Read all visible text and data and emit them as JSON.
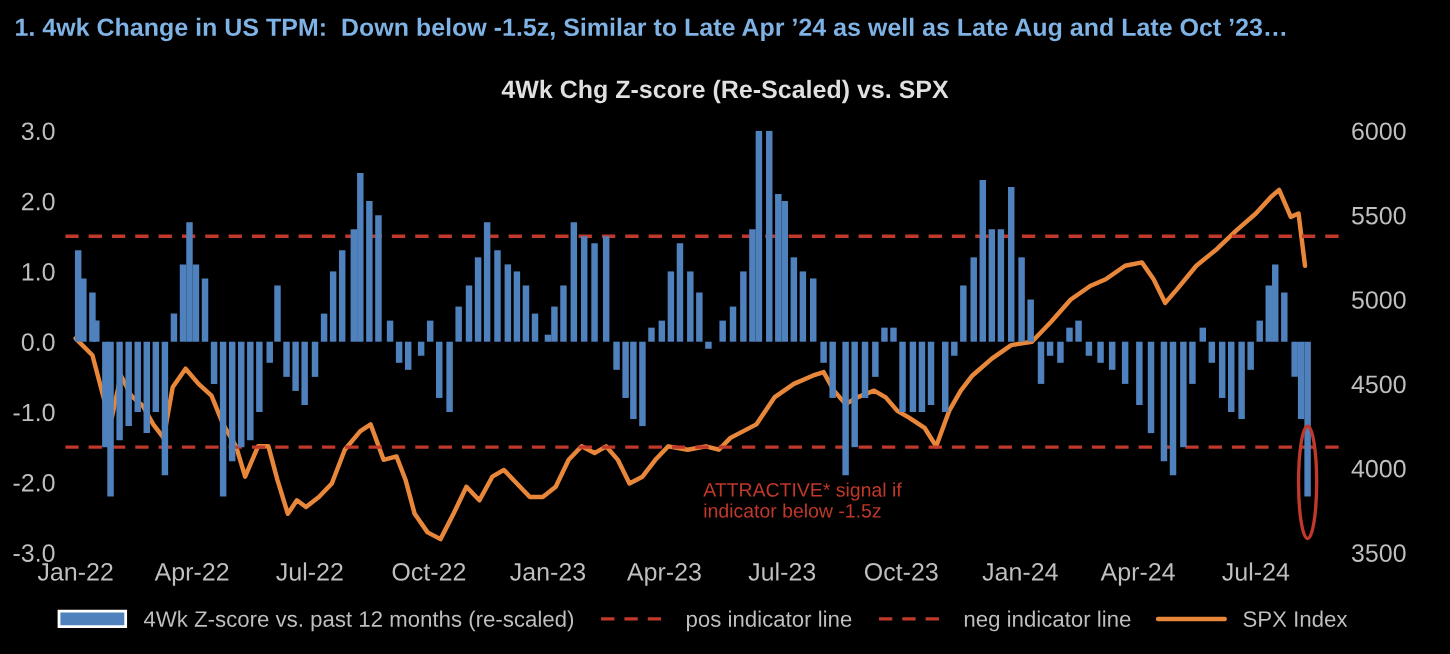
{
  "chart_data": {
    "type": "bar",
    "title": "1. 4wk Change in US TPM:  Down below -1.5z, Similar to Late Apr ’24 as well as Late Aug and Late Oct ’23…",
    "subtitle": "4Wk Chg Z-score (Re-Scaled) vs. SPX",
    "annotations": [
      "ATTRACTIVE* signal if\nindicator below -1.5z"
    ],
    "series": [
      {
        "name": "4Wk Z-score vs. past 12 months (re-scaled)",
        "color": "#4f81bd",
        "x": [
          "2022-01-03",
          "2022-01-07",
          "2022-01-14",
          "2022-01-17",
          "2022-01-24",
          "2022-01-28",
          "2022-02-04",
          "2022-02-11",
          "2022-02-18",
          "2022-02-25",
          "2022-03-04",
          "2022-03-11",
          "2022-03-18",
          "2022-03-25",
          "2022-03-30",
          "2022-04-04",
          "2022-04-11",
          "2022-04-18",
          "2022-04-25",
          "2022-05-02",
          "2022-05-09",
          "2022-05-16",
          "2022-05-23",
          "2022-05-31",
          "2022-06-06",
          "2022-06-13",
          "2022-06-20",
          "2022-06-27",
          "2022-07-05",
          "2022-07-12",
          "2022-07-19",
          "2022-07-26",
          "2022-08-04",
          "2022-08-09",
          "2022-08-16",
          "2022-08-23",
          "2022-09-01",
          "2022-09-08",
          "2022-09-15",
          "2022-09-25",
          "2022-10-02",
          "2022-10-09",
          "2022-10-17",
          "2022-10-24",
          "2022-11-01",
          "2022-11-08",
          "2022-11-15",
          "2022-11-23",
          "2022-12-01",
          "2022-12-08",
          "2022-12-15",
          "2022-12-22",
          "2023-01-01",
          "2023-01-06",
          "2023-01-13",
          "2023-01-21",
          "2023-01-29",
          "2023-02-06",
          "2023-02-15",
          "2023-02-23",
          "2023-03-02",
          "2023-03-08",
          "2023-03-15",
          "2023-03-22",
          "2023-03-30",
          "2023-04-06",
          "2023-04-13",
          "2023-04-21",
          "2023-04-28",
          "2023-05-05",
          "2023-05-16",
          "2023-05-24",
          "2023-06-01",
          "2023-06-08",
          "2023-06-13",
          "2023-06-21",
          "2023-06-28",
          "2023-07-03",
          "2023-07-10",
          "2023-07-17",
          "2023-07-25",
          "2023-08-02",
          "2023-08-09",
          "2023-08-19",
          "2023-08-26",
          "2023-09-03",
          "2023-09-11",
          "2023-09-18",
          "2023-09-25",
          "2023-10-02",
          "2023-10-10",
          "2023-10-17",
          "2023-10-24",
          "2023-11-04",
          "2023-11-11",
          "2023-11-18",
          "2023-11-26",
          "2023-12-03",
          "2023-12-10",
          "2023-12-17",
          "2023-12-25",
          "2024-01-02",
          "2024-01-09",
          "2024-01-17",
          "2024-01-24",
          "2024-02-01",
          "2024-02-08",
          "2024-02-15",
          "2024-02-23",
          "2024-03-03",
          "2024-03-12",
          "2024-03-22",
          "2024-04-02",
          "2024-04-11",
          "2024-04-21",
          "2024-04-28",
          "2024-05-06",
          "2024-05-13",
          "2024-05-21",
          "2024-05-28",
          "2024-06-05",
          "2024-06-12",
          "2024-06-20",
          "2024-06-27",
          "2024-07-04",
          "2024-07-11",
          "2024-07-16",
          "2024-07-23",
          "2024-07-31",
          "2024-08-05",
          "2024-08-10"
        ],
        "values": [
          1.3,
          0.9,
          0.7,
          0.3,
          -1.5,
          -2.2,
          -1.4,
          -1.2,
          -1.0,
          -1.3,
          -1.0,
          -1.9,
          0.4,
          1.1,
          1.7,
          1.1,
          0.9,
          -0.6,
          -2.2,
          -1.7,
          -1.5,
          -1.4,
          -1.0,
          -0.3,
          0.8,
          -0.5,
          -0.7,
          -0.9,
          -0.5,
          0.4,
          1.0,
          1.3,
          1.6,
          2.4,
          2.0,
          1.8,
          0.3,
          -0.3,
          -0.4,
          -0.2,
          0.3,
          -0.8,
          -1.0,
          0.5,
          0.8,
          1.2,
          1.7,
          1.3,
          1.1,
          1.0,
          0.8,
          0.4,
          0.1,
          0.5,
          0.8,
          1.7,
          1.5,
          1.4,
          1.5,
          -0.4,
          -0.8,
          -1.1,
          -1.2,
          0.2,
          0.3,
          1.0,
          1.4,
          1.0,
          0.7,
          -0.1,
          0.3,
          0.5,
          1.0,
          1.6,
          3.0,
          3.0,
          2.1,
          2.0,
          1.2,
          1.0,
          0.9,
          -0.3,
          -0.8,
          -1.9,
          -1.5,
          -0.8,
          -0.5,
          0.2,
          0.2,
          -1.0,
          -1.0,
          -1.0,
          -0.9,
          -1.0,
          -0.2,
          0.8,
          1.2,
          2.3,
          1.6,
          1.6,
          2.2,
          1.2,
          0.6,
          -0.6,
          -0.2,
          -0.3,
          0.2,
          0.3,
          -0.2,
          -0.3,
          -0.4,
          -0.6,
          -0.9,
          -1.3,
          -1.7,
          -1.9,
          -1.5,
          -0.6,
          0.2,
          -0.3,
          -0.8,
          -1.0,
          -1.1,
          -0.4,
          0.3,
          0.8,
          1.1,
          0.7,
          -0.5,
          -1.1,
          -2.2
        ]
      },
      {
        "name": "SPX Index",
        "type": "line",
        "axis": "y2",
        "color": "#e8873a",
        "x": [
          "2022-01-01",
          "2022-01-14",
          "2022-01-24",
          "2022-01-29",
          "2022-02-05",
          "2022-02-13",
          "2022-02-22",
          "2022-03-02",
          "2022-03-10",
          "2022-03-17",
          "2022-03-27",
          "2022-04-06",
          "2022-04-16",
          "2022-04-25",
          "2022-05-05",
          "2022-05-12",
          "2022-05-22",
          "2022-05-30",
          "2022-06-06",
          "2022-06-14",
          "2022-06-21",
          "2022-06-28",
          "2022-07-08",
          "2022-07-18",
          "2022-07-28",
          "2022-08-09",
          "2022-08-17",
          "2022-08-27",
          "2022-09-06",
          "2022-09-13",
          "2022-09-20",
          "2022-09-30",
          "2022-10-10",
          "2022-10-20",
          "2022-10-30",
          "2022-11-09",
          "2022-11-19",
          "2022-11-28",
          "2022-12-08",
          "2022-12-18",
          "2022-12-28",
          "2023-01-07",
          "2023-01-17",
          "2023-01-27",
          "2023-02-06",
          "2023-02-15",
          "2023-02-24",
          "2023-03-05",
          "2023-03-15",
          "2023-03-25",
          "2023-04-04",
          "2023-04-19",
          "2023-05-03",
          "2023-05-13",
          "2023-05-22",
          "2023-06-11",
          "2023-06-25",
          "2023-07-10",
          "2023-07-25",
          "2023-08-02",
          "2023-08-10",
          "2023-08-19",
          "2023-08-28",
          "2023-09-10",
          "2023-09-19",
          "2023-09-28",
          "2023-10-07",
          "2023-10-19",
          "2023-10-28",
          "2023-11-07",
          "2023-11-16",
          "2023-11-25",
          "2023-12-10",
          "2023-12-25",
          "2024-01-10",
          "2024-01-25",
          "2024-02-09",
          "2024-02-24",
          "2024-03-07",
          "2024-03-22",
          "2024-04-04",
          "2024-04-13",
          "2024-04-22",
          "2024-05-01",
          "2024-05-16",
          "2024-06-01",
          "2024-06-16",
          "2024-07-01",
          "2024-07-13",
          "2024-07-19",
          "2024-07-28",
          "2024-08-03",
          "2024-08-08"
        ],
        "values": [
          4770,
          4670,
          4380,
          4300,
          4550,
          4430,
          4370,
          4260,
          4180,
          4480,
          4590,
          4500,
          4430,
          4260,
          4130,
          3950,
          4130,
          4130,
          3930,
          3730,
          3810,
          3770,
          3830,
          3910,
          4110,
          4220,
          4260,
          4050,
          4070,
          3930,
          3730,
          3620,
          3580,
          3730,
          3890,
          3810,
          3950,
          3990,
          3910,
          3830,
          3830,
          3890,
          4050,
          4130,
          4090,
          4130,
          4050,
          3910,
          3950,
          4050,
          4130,
          4110,
          4130,
          4110,
          4180,
          4260,
          4420,
          4500,
          4550,
          4570,
          4460,
          4380,
          4420,
          4460,
          4420,
          4340,
          4300,
          4240,
          4130,
          4340,
          4460,
          4550,
          4650,
          4730,
          4750,
          4870,
          5000,
          5080,
          5120,
          5200,
          5220,
          5120,
          4980,
          5060,
          5200,
          5300,
          5410,
          5510,
          5610,
          5650,
          5490,
          5510,
          5200
        ]
      }
    ],
    "xlim": [
      "2021-12-24",
      "2024-09-05"
    ],
    "xticks": [
      {
        "value": "2022-01-01",
        "label": "Jan-22"
      },
      {
        "value": "2022-04-01",
        "label": "Apr-22"
      },
      {
        "value": "2022-07-01",
        "label": "Jul-22"
      },
      {
        "value": "2022-10-01",
        "label": "Oct-22"
      },
      {
        "value": "2023-01-01",
        "label": "Jan-23"
      },
      {
        "value": "2023-04-01",
        "label": "Apr-23"
      },
      {
        "value": "2023-07-01",
        "label": "Jul-23"
      },
      {
        "value": "2023-10-01",
        "label": "Oct-23"
      },
      {
        "value": "2024-01-01",
        "label": "Jan-24"
      },
      {
        "value": "2024-04-01",
        "label": "Apr-24"
      },
      {
        "value": "2024-07-01",
        "label": "Jul-24"
      }
    ],
    "ylim": [
      -3,
      3
    ],
    "yticks": [
      {
        "value": -3,
        "label": "-3.0"
      },
      {
        "value": -2,
        "label": "-2.0"
      },
      {
        "value": -1,
        "label": "-1.0"
      },
      {
        "value": 0,
        "label": "0.0"
      },
      {
        "value": 1,
        "label": "1.0"
      },
      {
        "value": 2,
        "label": "2.0"
      },
      {
        "value": 3,
        "label": "3.0"
      }
    ],
    "y2lim": [
      3500,
      6000
    ],
    "y2ticks": [
      3500,
      4000,
      4500,
      5000,
      5500,
      6000
    ],
    "ref_lines": [
      {
        "axis": "y",
        "value": 1.5,
        "label": "pos indicator line",
        "color": "#c0392b",
        "line_style": "dashed"
      },
      {
        "axis": "y",
        "value": -1.5,
        "label": "neg indicator line",
        "color": "#c0392b",
        "line_style": "dashed"
      }
    ],
    "grid": false,
    "legend": "bottom"
  }
}
